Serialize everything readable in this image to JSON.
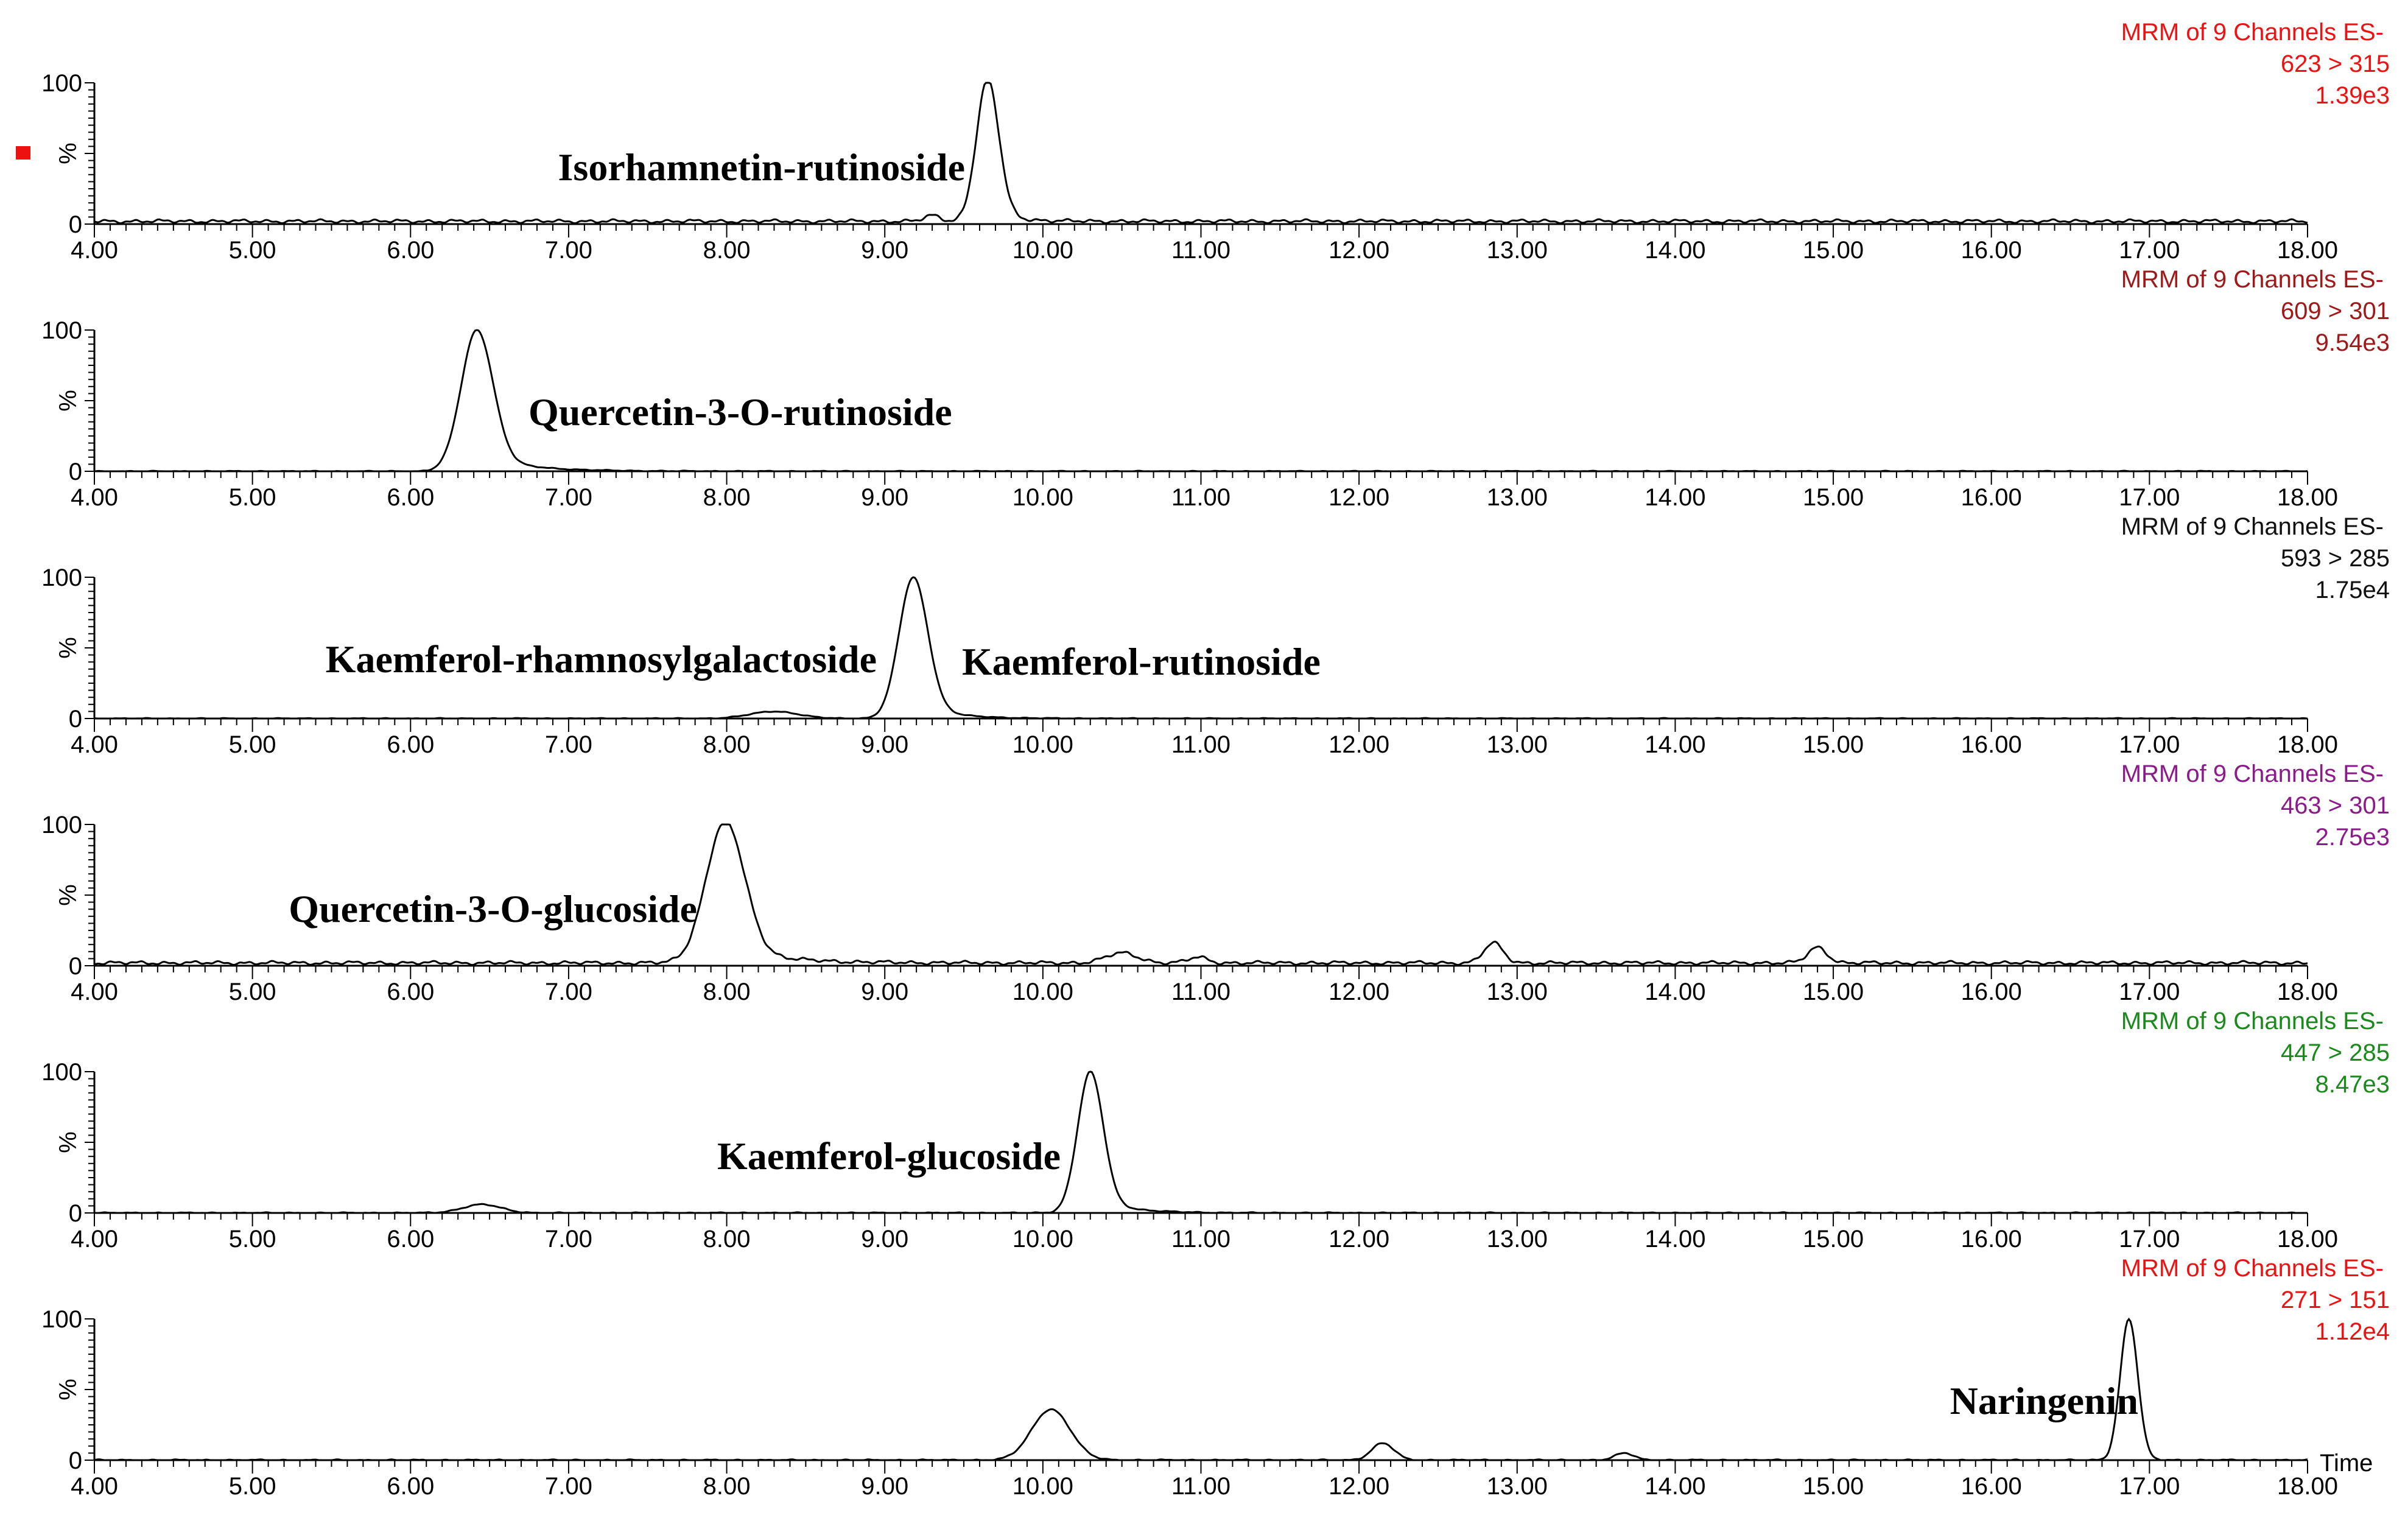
{
  "chart_data": {
    "type": "line",
    "title": "",
    "xlabel": "Time",
    "ylabel": "%",
    "xlim": [
      4.0,
      18.0
    ],
    "ylim": [
      0,
      100
    ],
    "x_ticks": [
      "4.00",
      "5.00",
      "6.00",
      "7.00",
      "8.00",
      "9.00",
      "10.00",
      "11.00",
      "12.00",
      "13.00",
      "14.00",
      "15.00",
      "16.00",
      "17.00",
      "18.00"
    ],
    "y_ticks": [
      "0",
      "100"
    ],
    "legend_marker_color": "#ee1111",
    "panels": [
      {
        "channel": "MRM of 9 Channels ES-",
        "transition": "623 > 315",
        "intensity": "1.39e3",
        "color": "#ee1111",
        "baseline": 2,
        "noise": 1.5,
        "peaks": [
          {
            "label": "Isorhamnetin-rutinoside",
            "rt": 9.65,
            "height": 100,
            "sigma": 0.07,
            "tail": 0.12
          },
          {
            "label": "",
            "rt": 9.3,
            "height": 4,
            "sigma": 0.05,
            "tail": 0
          }
        ]
      },
      {
        "channel": "MRM of 9 Channels ES-",
        "transition": "609 > 301",
        "intensity": "9.54e3",
        "color": "#a01818",
        "baseline": 0,
        "noise": 0.4,
        "peaks": [
          {
            "label": "Quercetin-3-O-rutinoside",
            "rt": 6.42,
            "height": 100,
            "sigma": 0.1,
            "tail": 0.28
          }
        ]
      },
      {
        "channel": "MRM of 9 Channels ES-",
        "transition": "593 > 285",
        "intensity": "1.75e4",
        "color": "#111111",
        "baseline": 0,
        "noise": 0.4,
        "peaks": [
          {
            "label": "Kaemferol-rhamnosylgalactoside",
            "rt": 8.3,
            "height": 5,
            "sigma": 0.15,
            "tail": 0.1
          },
          {
            "label": "Kaemferol-rutinoside",
            "rt": 9.18,
            "height": 100,
            "sigma": 0.09,
            "tail": 0.2
          }
        ]
      },
      {
        "channel": "MRM of 9 Channels ES-",
        "transition": "463 > 301",
        "intensity": "2.75e3",
        "color": "#8b1a8b",
        "baseline": 2,
        "noise": 1.5,
        "peaks": [
          {
            "label": "Quercetin-3-O-glucoside",
            "rt": 7.99,
            "height": 100,
            "sigma": 0.12,
            "tail": 0.3
          },
          {
            "label": "",
            "rt": 10.5,
            "height": 7,
            "sigma": 0.1,
            "tail": 0
          },
          {
            "label": "",
            "rt": 10.98,
            "height": 4,
            "sigma": 0.06,
            "tail": 0
          },
          {
            "label": "",
            "rt": 12.85,
            "height": 14,
            "sigma": 0.06,
            "tail": 0
          },
          {
            "label": "",
            "rt": 14.9,
            "height": 11,
            "sigma": 0.06,
            "tail": 0
          }
        ]
      },
      {
        "channel": "MRM of 9 Channels ES-",
        "transition": "447 > 285",
        "intensity": "8.47e3",
        "color": "#1a8a1a",
        "baseline": 0,
        "noise": 0.5,
        "peaks": [
          {
            "label": "",
            "rt": 6.45,
            "height": 6,
            "sigma": 0.12,
            "tail": 0.05
          },
          {
            "label": "Kaemferol-glucoside",
            "rt": 10.3,
            "height": 100,
            "sigma": 0.08,
            "tail": 0.2
          }
        ]
      },
      {
        "channel": "MRM of 9 Channels ES-",
        "transition": "271 > 151",
        "intensity": "1.12e4",
        "color": "#ee1111",
        "baseline": 0,
        "noise": 0.6,
        "peaks": [
          {
            "label": "",
            "rt": 10.05,
            "height": 36,
            "sigma": 0.12,
            "tail": 0.1
          },
          {
            "label": "",
            "rt": 12.15,
            "height": 12,
            "sigma": 0.07,
            "tail": 0.05
          },
          {
            "label": "",
            "rt": 13.68,
            "height": 5,
            "sigma": 0.06,
            "tail": 0
          },
          {
            "label": "Naringenin",
            "rt": 16.87,
            "height": 100,
            "sigma": 0.055,
            "tail": 0.05
          }
        ]
      }
    ]
  }
}
